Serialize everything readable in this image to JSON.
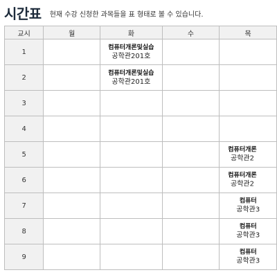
{
  "header": {
    "title": "시간표",
    "subtitle": "현재 수강 신청한 과목들을 표 형태로 볼 수 있습니다."
  },
  "table": {
    "columns": [
      "교시",
      "월",
      "화",
      "수",
      "목"
    ],
    "rows": [
      {
        "period": "1",
        "tue": {
          "name": "컴퓨터개론및실습",
          "room": "공학관201호"
        }
      },
      {
        "period": "2",
        "tue": {
          "name": "컴퓨터개론및실습",
          "room": "공학관201호"
        }
      },
      {
        "period": "3"
      },
      {
        "period": "4"
      },
      {
        "period": "5",
        "thu": {
          "name": "컴퓨터개론",
          "room": "공학관2"
        }
      },
      {
        "period": "6",
        "thu": {
          "name": "컴퓨터개론",
          "room": "공학관2"
        }
      },
      {
        "period": "7",
        "thu": {
          "name": "컴퓨터",
          "room": "공학관3"
        }
      },
      {
        "period": "8",
        "thu": {
          "name": "컴퓨터",
          "room": "공학관3"
        }
      },
      {
        "period": "9",
        "thu": {
          "name": "컴퓨터",
          "room": "공학관3"
        }
      }
    ]
  }
}
